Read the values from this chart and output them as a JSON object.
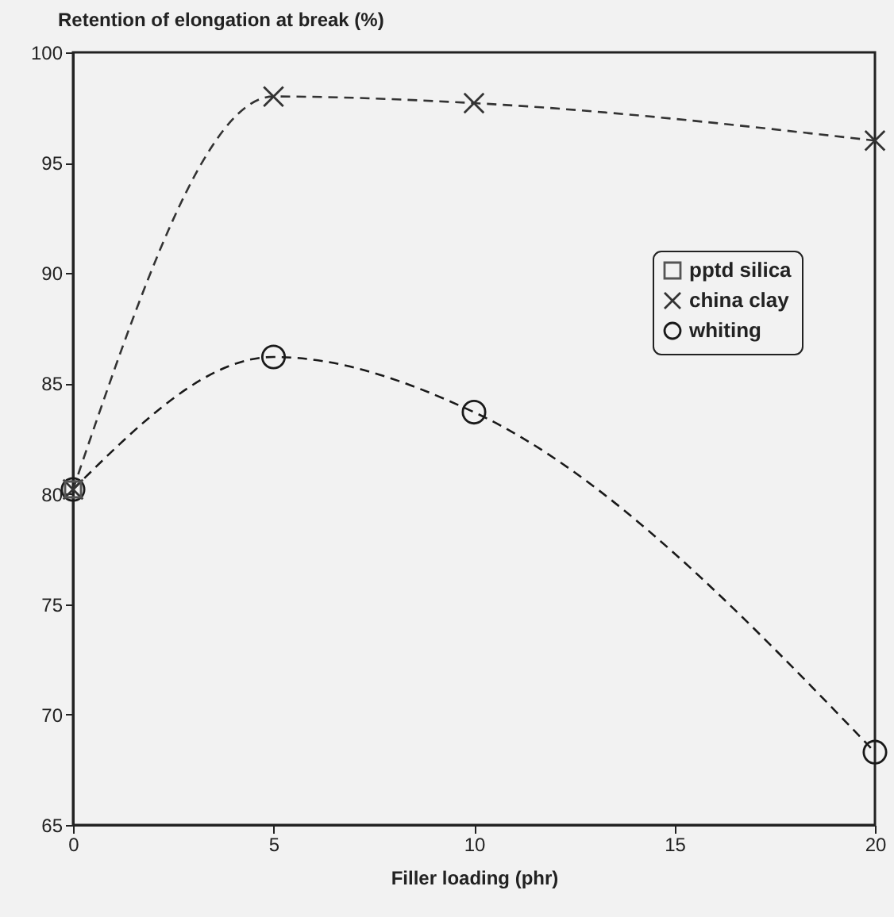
{
  "chart_data": {
    "type": "line",
    "ylabel": "Retention of elongation at break (%)",
    "xlabel": "Filler loading (phr)",
    "x": [
      0,
      5,
      10,
      20
    ],
    "series": [
      {
        "name": "pptd silica",
        "color": "#555555",
        "marker": "square",
        "values": [
          80.2,
          null,
          null,
          null
        ]
      },
      {
        "name": "china clay",
        "color": "#333333",
        "marker": "cross",
        "values": [
          80.2,
          98.0,
          97.7,
          96.0
        ]
      },
      {
        "name": "whiting",
        "color": "#1a1a1a",
        "marker": "circle",
        "values": [
          80.2,
          86.2,
          83.7,
          68.3
        ]
      }
    ],
    "xlim": [
      0,
      20
    ],
    "xticks": [
      0,
      5,
      10,
      15,
      20
    ],
    "ylim": [
      65,
      100
    ],
    "yticks": [
      65,
      70,
      75,
      80,
      85,
      90,
      95,
      100
    ],
    "grid": false,
    "legend": "right",
    "line_style": "dashed"
  }
}
